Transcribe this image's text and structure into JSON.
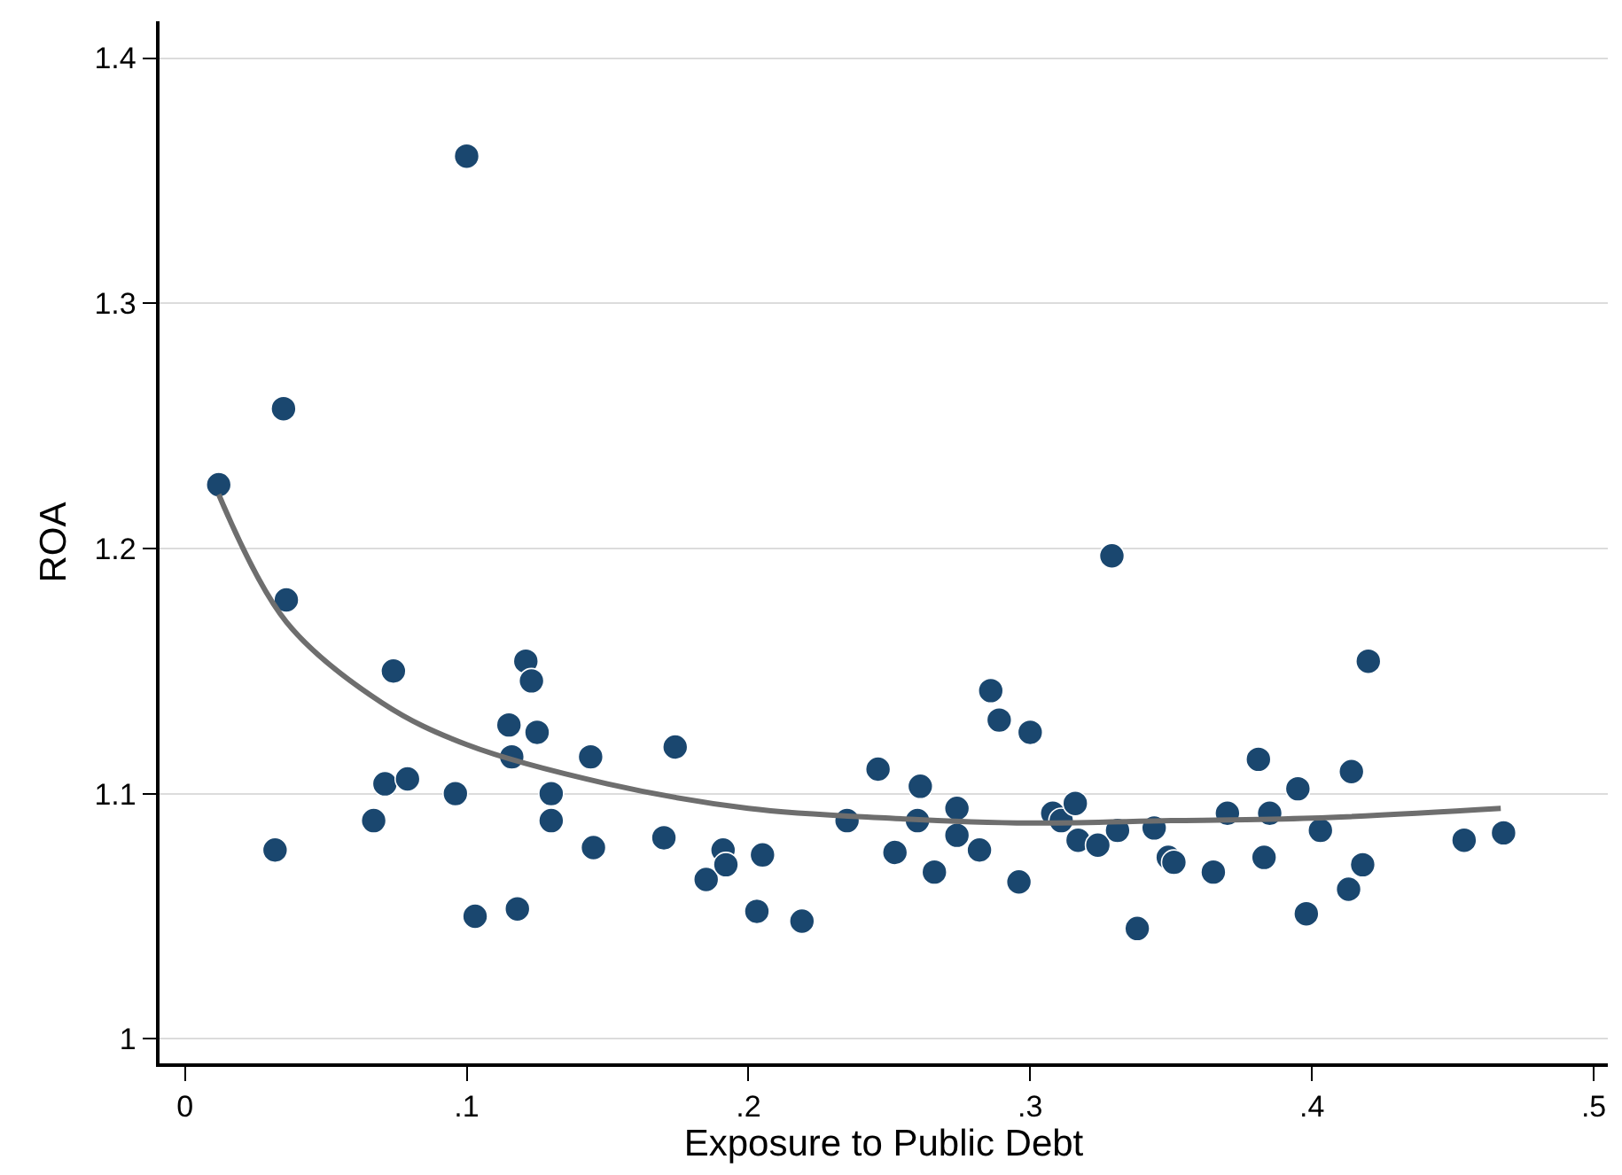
{
  "chart_data": {
    "type": "scatter",
    "xlabel": "Exposure to Public Debt",
    "ylabel": "ROA",
    "xlim": [
      -0.009,
      0.505
    ],
    "ylim": [
      0.99,
      1.415
    ],
    "xticks": [
      0,
      {
        "value": 0.1,
        "label": ".1"
      },
      {
        "value": 0.2,
        "label": ".2"
      },
      {
        "value": 0.3,
        "label": ".3"
      },
      {
        "value": 0.4,
        "label": ".4"
      },
      {
        "value": 0.5,
        "label": ".5"
      }
    ],
    "yticks": [
      1,
      1.1,
      1.2,
      1.3,
      1.4
    ],
    "grid": "y",
    "marker": "circle",
    "series": [
      {
        "color": "#1a476f",
        "x": [
          0.012,
          0.035,
          0.036,
          0.032,
          0.1,
          0.074,
          0.067,
          0.071,
          0.079,
          0.096,
          0.103,
          0.115,
          0.116,
          0.121,
          0.123,
          0.125,
          0.13,
          0.13,
          0.118,
          0.144,
          0.145,
          0.17,
          0.174,
          0.185,
          0.191,
          0.192,
          0.203,
          0.205,
          0.219,
          0.235,
          0.246,
          0.252,
          0.261,
          0.26,
          0.266,
          0.274,
          0.274,
          0.282,
          0.286,
          0.289,
          0.296,
          0.3,
          0.308,
          0.311,
          0.316,
          0.317,
          0.324,
          0.329,
          0.331,
          0.338,
          0.344,
          0.349,
          0.351,
          0.365,
          0.37,
          0.381,
          0.383,
          0.385,
          0.395,
          0.398,
          0.403,
          0.413,
          0.414,
          0.418,
          0.42,
          0.454,
          0.468
        ],
        "values": [
          1.226,
          1.257,
          1.179,
          1.077,
          1.36,
          1.15,
          1.089,
          1.104,
          1.106,
          1.1,
          1.05,
          1.128,
          1.115,
          1.154,
          1.146,
          1.125,
          1.1,
          1.089,
          1.053,
          1.115,
          1.078,
          1.082,
          1.119,
          1.065,
          1.077,
          1.071,
          1.052,
          1.075,
          1.048,
          1.089,
          1.11,
          1.076,
          1.103,
          1.089,
          1.068,
          1.094,
          1.083,
          1.077,
          1.142,
          1.13,
          1.064,
          1.125,
          1.092,
          1.089,
          1.096,
          1.081,
          1.079,
          1.197,
          1.085,
          1.045,
          1.086,
          1.074,
          1.072,
          1.068,
          1.092,
          1.114,
          1.074,
          1.092,
          1.102,
          1.051,
          1.085,
          1.061,
          1.109,
          1.071,
          1.154,
          1.081,
          1.084
        ]
      },
      {
        "type": "line",
        "color": "#6e6e6e",
        "marker": "none",
        "x": [
          0.012,
          0.036,
          0.07,
          0.1,
          0.15,
          0.2,
          0.25,
          0.3,
          0.35,
          0.4,
          0.467
        ],
        "values": [
          1.222,
          1.17,
          1.137,
          1.12,
          1.104,
          1.094,
          1.09,
          1.088,
          1.089,
          1.09,
          1.094
        ]
      }
    ]
  }
}
